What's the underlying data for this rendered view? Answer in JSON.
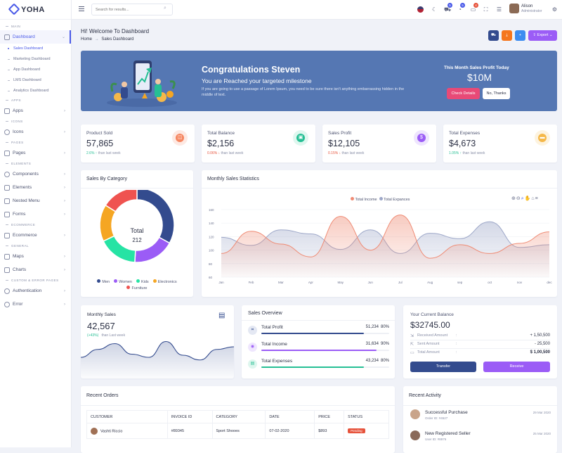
{
  "brand": {
    "name": "YOHA"
  },
  "sidebar": {
    "sections": [
      "Main",
      "Apps",
      "Icons",
      "Pages",
      "Elements",
      "Ecommerce",
      "General",
      "Custom & Error Pages"
    ],
    "dashboard": "Dashboard",
    "subitems": [
      "Sales Dashboard",
      "Marketing Dashboard",
      "App Dashboard",
      "LMS Dashboard",
      "Analytics Dashboard"
    ],
    "apps": "Apps",
    "icons": "Icons",
    "pages": "Pages",
    "components": "Components",
    "elements": "Elements",
    "nested": "Nested Menu",
    "forms": "Forms",
    "ecommerce": "Ecommerce",
    "maps": "Maps",
    "charts": "Charts",
    "auth": "Authentication",
    "error": "Error"
  },
  "header": {
    "search_placeholder": "Search for results...",
    "cart_count": "5",
    "notif_count": "5",
    "msg_count": "4",
    "user_name": "Alison",
    "user_role": "Administrator"
  },
  "page": {
    "title": "Hi! Welcome To Dashboard",
    "crumb_home": "Home",
    "crumb_sep": "→",
    "crumb_current": "Sales Dashboard",
    "export": "Export"
  },
  "banner": {
    "title": "Congratulations Steven",
    "subtitle": "You are Reached your targeted milestone",
    "text": "If you are going to use a passage of Lorem Ipsum, you need to be sure there isn't anything embarrassing hidden in the middle of text.",
    "profit_label": "This Month Sales Profit Today",
    "profit_value": "$10M",
    "check_btn": "Check Details",
    "no_btn": "No, Thanks"
  },
  "stats": [
    {
      "label": "Product Sold",
      "value": "57,865",
      "change": "2.6%",
      "dir": "up",
      "note": "than last week",
      "color": "#f6855f",
      "bg": "#fde9e3"
    },
    {
      "label": "Total Balance",
      "value": "$2,156",
      "change": "0.06%",
      "dir": "down",
      "note": "than last week",
      "color": "#26bf94",
      "bg": "#dff7ef"
    },
    {
      "label": "Sales Profit",
      "value": "$12,105",
      "change": "0.15%",
      "dir": "down",
      "note": "than last week",
      "color": "#9b5cf6",
      "bg": "#eee5fe"
    },
    {
      "label": "Total Expenses",
      "value": "$4,673",
      "change": "1.05%",
      "dir": "up",
      "note": "than last week",
      "color": "#f5b849",
      "bg": "#fdf3df"
    }
  ],
  "category": {
    "title": "Sales By Category",
    "center_label": "Total",
    "center_value": "212",
    "legend": [
      "Men",
      "Women",
      "Kids",
      "Electronics",
      "Furniture"
    ]
  },
  "monthly": {
    "title": "Monthly Sales Statistics",
    "toolbar_icons": [
      "zoom-in-icon",
      "zoom-out-icon",
      "magnifier-icon",
      "hand-icon",
      "home-icon",
      "menu-icon"
    ]
  },
  "chart_data": [
    {
      "type": "pie",
      "title": "Sales By Category",
      "categories": [
        "Men",
        "Women",
        "Kids",
        "Electronics",
        "Furniture"
      ],
      "values": [
        70,
        38,
        36,
        34,
        34
      ],
      "colors": [
        "#334b8e",
        "#9b5cf6",
        "#26e3a4",
        "#f5a623",
        "#ef5350"
      ],
      "total": 212
    },
    {
      "type": "area",
      "title": "Monthly Sales Statistics",
      "categories": [
        "Jan",
        "Feb",
        "Mar",
        "Apr",
        "May",
        "Jun",
        "Jul",
        "Aug",
        "sep",
        "oct",
        "nov",
        "dec"
      ],
      "series": [
        {
          "name": "Total Income",
          "color": "#ef8b74",
          "values": [
            95,
            128,
            109,
            90,
            150,
            100,
            152,
            88,
            108,
            95,
            110,
            127
          ]
        },
        {
          "name": "Total Expances",
          "color": "#9da7c8",
          "values": [
            119,
            107,
            130,
            124,
            101,
            130,
            95,
            125,
            117,
            142,
            104,
            108
          ]
        }
      ],
      "ylim": [
        60,
        160
      ],
      "yticks": [
        160,
        140,
        120,
        100,
        80,
        60
      ]
    },
    {
      "type": "area",
      "title": "Monthly Sales",
      "x": [
        0,
        1,
        2,
        3,
        4,
        5,
        6,
        7,
        8,
        9
      ],
      "values": [
        40,
        55,
        66,
        46,
        40,
        70,
        44,
        35,
        55,
        60
      ]
    }
  ],
  "monthly_sales": {
    "title": "Monthly Sales",
    "value": "42,567",
    "change": "(+43%)",
    "note": "than Last week"
  },
  "overview": {
    "title": "Sales Overview",
    "items": [
      {
        "label": "Total Profit",
        "value": "51,234",
        "pct": "80%",
        "color": "#334b8e",
        "bg": "#e4e8f3",
        "fill": 80
      },
      {
        "label": "Total Income",
        "value": "31,634",
        "pct": "90%",
        "color": "#9b5cf6",
        "bg": "#efe6fe",
        "fill": 90
      },
      {
        "label": "Total Expenses",
        "value": "43,234",
        "pct": "80%",
        "color": "#26bf94",
        "bg": "#def6ee",
        "fill": 80
      }
    ]
  },
  "balance": {
    "title": "Your Current Balance",
    "value": "$32745.00",
    "rows": [
      {
        "label": "Received Amount",
        "sep": ":",
        "value": "+ 1,50,500"
      },
      {
        "label": "Sent Amount",
        "sep": ":",
        "value": "- 25,500"
      },
      {
        "label": "Total Amount",
        "sep": ":",
        "value": "$ 1,00,500"
      }
    ],
    "transfer": "Transfer",
    "receive": "Receive"
  },
  "orders": {
    "title": "Recent Orders",
    "columns": [
      "CUSTOMER",
      "INVOICE ID",
      "CATEGORY",
      "DATE",
      "PRICE",
      "STATUS"
    ],
    "rows": [
      {
        "customer": "Vashti Riccio",
        "invoice": "#89345",
        "category": "Sport Shooes",
        "date": "07-02-2020",
        "price": "$893",
        "status": "Pending"
      }
    ]
  },
  "activity": {
    "title": "Recent Activity",
    "items": [
      {
        "title": "Successful Purchase",
        "sub": "Order ID: #4527",
        "date": "29 Mar 2020"
      },
      {
        "title": "New Registered Seller",
        "sub": "User ID: #8976",
        "date": "25 Mar 2020"
      }
    ]
  }
}
